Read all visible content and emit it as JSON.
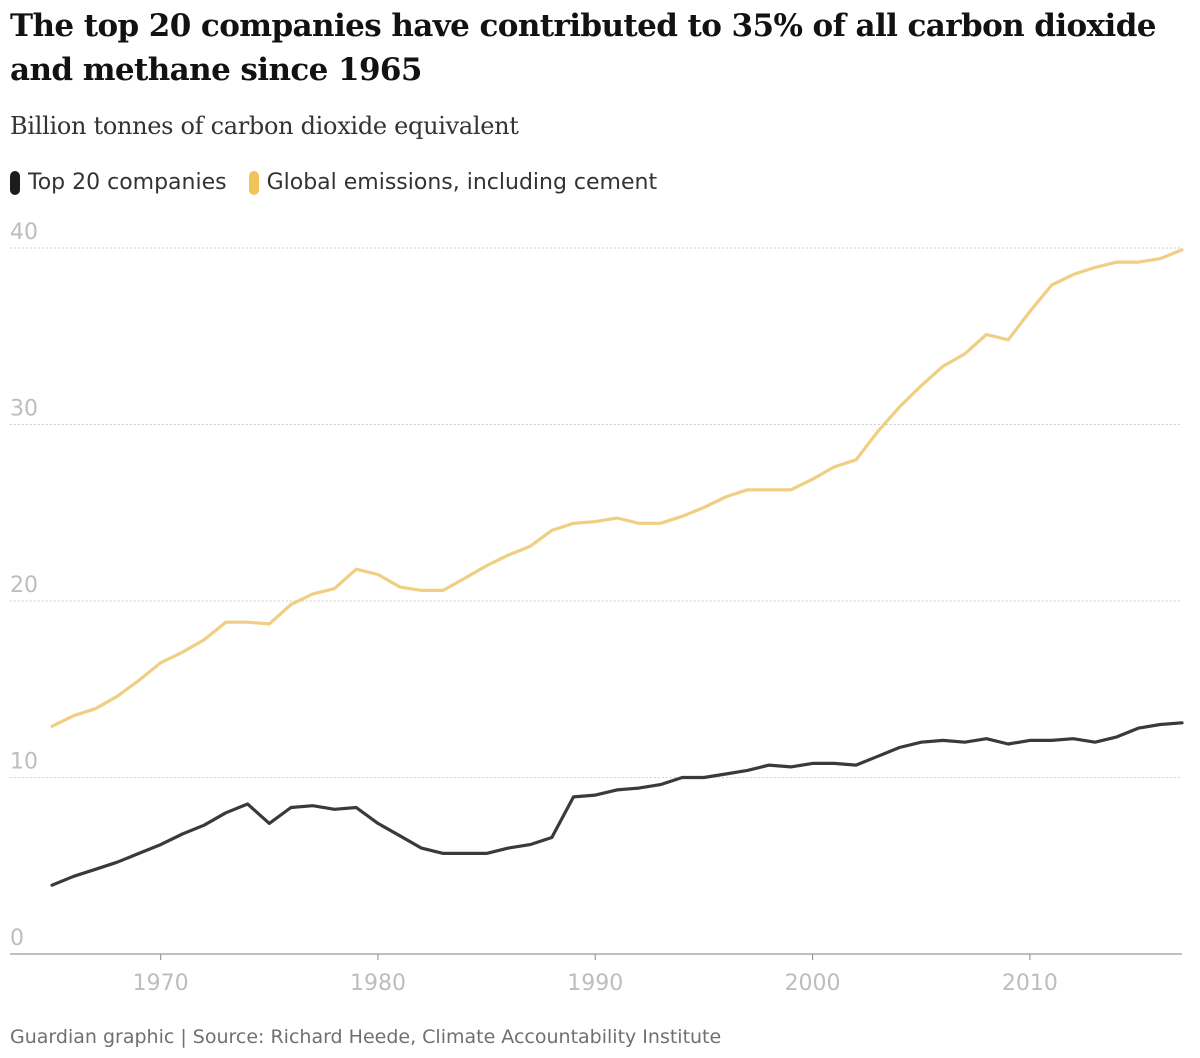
{
  "title": "The top 20 companies have contributed to 35% of all carbon dioxide and methane since 1965",
  "subtitle": "Billion tonnes of carbon dioxide equivalent",
  "legend": [
    {
      "label": "Top 20 companies",
      "color": "#1c1c1c"
    },
    {
      "label": "Global emissions, including cement",
      "color": "#f0c458"
    }
  ],
  "source": "Guardian graphic | Source: Richard Heede, Climate Accountability Institute",
  "chart_data": {
    "type": "line",
    "title": "The top 20 companies have contributed to 35% of all carbon dioxide and methane since 1965",
    "subtitle": "Billion tonnes of carbon dioxide equivalent",
    "ylim": [
      0,
      40
    ],
    "xlim": [
      1965,
      2017
    ],
    "yticks": [
      0,
      10,
      20,
      30,
      40
    ],
    "xticks": [
      1970,
      1980,
      1990,
      2000,
      2010
    ],
    "grid": true,
    "legend_position": "top",
    "x": [
      1965,
      1966,
      1967,
      1968,
      1969,
      1970,
      1971,
      1972,
      1973,
      1974,
      1975,
      1976,
      1977,
      1978,
      1979,
      1980,
      1981,
      1982,
      1983,
      1984,
      1985,
      1986,
      1987,
      1988,
      1989,
      1990,
      1991,
      1992,
      1993,
      1994,
      1995,
      1996,
      1997,
      1998,
      1999,
      2000,
      2001,
      2002,
      2003,
      2004,
      2005,
      2006,
      2007,
      2008,
      2009,
      2010,
      2011,
      2012,
      2013,
      2014,
      2015,
      2016,
      2017
    ],
    "series": [
      {
        "name": "Top 20 companies",
        "color": "#3a3a3a",
        "values": [
          3.9,
          4.4,
          4.8,
          5.2,
          5.7,
          6.2,
          6.8,
          7.3,
          8.0,
          8.5,
          7.4,
          8.3,
          8.4,
          8.2,
          8.3,
          7.4,
          6.7,
          6.0,
          5.7,
          5.7,
          5.7,
          6.0,
          6.2,
          6.6,
          8.9,
          9.0,
          9.3,
          9.4,
          9.6,
          10.0,
          10.0,
          10.2,
          10.4,
          10.7,
          10.6,
          10.8,
          10.8,
          10.7,
          11.2,
          11.7,
          12.0,
          12.1,
          12.0,
          12.2,
          11.9,
          12.1,
          12.1,
          12.2,
          12.0,
          12.3,
          12.8,
          13.0,
          13.1
        ]
      },
      {
        "name": "Global emissions, including cement",
        "color": "#f0ce82",
        "values": [
          12.9,
          13.5,
          13.9,
          14.6,
          15.5,
          16.5,
          17.1,
          17.8,
          18.8,
          18.8,
          18.7,
          19.8,
          20.4,
          20.7,
          21.8,
          21.5,
          20.8,
          20.6,
          20.6,
          21.3,
          22.0,
          22.6,
          23.1,
          24.0,
          24.4,
          24.5,
          24.7,
          24.4,
          24.4,
          24.8,
          25.3,
          25.9,
          26.3,
          26.3,
          26.3,
          26.9,
          27.6,
          28.0,
          29.6,
          31.0,
          32.2,
          33.3,
          34.0,
          35.1,
          34.8,
          36.4,
          37.9,
          38.5,
          38.9,
          39.2,
          39.2,
          39.4,
          39.9
        ]
      }
    ]
  }
}
